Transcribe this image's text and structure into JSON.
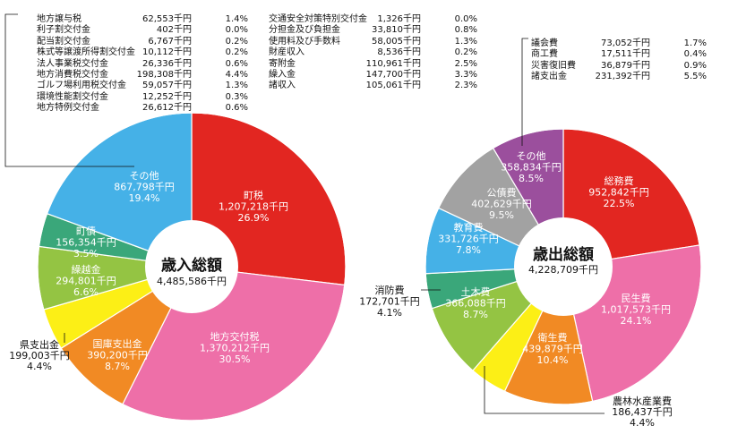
{
  "chart_data": [
    {
      "type": "pie",
      "title": "歳入総額",
      "total": "4,485,586千円",
      "slices": [
        {
          "name": "町税",
          "value": "1,207,218千円",
          "pct": "26.9%",
          "share": 26.9,
          "color": "#e22621"
        },
        {
          "name": "地方交付税",
          "value": "1,370,212千円",
          "pct": "30.5%",
          "share": 30.5,
          "color": "#ee6fa8"
        },
        {
          "name": "国庫支出金",
          "value": "390,200千円",
          "pct": "8.7%",
          "share": 8.7,
          "color": "#f18a24"
        },
        {
          "name": "県支出金",
          "value": "199,003千円",
          "pct": "4.4%",
          "share": 4.4,
          "color": "#fcef16"
        },
        {
          "name": "繰越金",
          "value": "294,801千円",
          "pct": "6.6%",
          "share": 6.6,
          "color": "#94c443"
        },
        {
          "name": "町債",
          "value": "156,354千円",
          "pct": "3.5%",
          "share": 3.5,
          "color": "#3aa77a"
        },
        {
          "name": "その他",
          "value": "867,798千円",
          "pct": "19.4%",
          "share": 19.4,
          "color": "#45b1e7"
        }
      ],
      "other_breakdown": [
        {
          "name": "地方譲与税",
          "value": "62,553千円",
          "pct": "1.4%"
        },
        {
          "name": "利子割交付金",
          "value": "402千円",
          "pct": "0.0%"
        },
        {
          "name": "配当割交付金",
          "value": "6,767千円",
          "pct": "0.2%"
        },
        {
          "name": "株式等譲渡所得割交付金",
          "value": "10,112千円",
          "pct": "0.2%"
        },
        {
          "name": "法人事業税交付金",
          "value": "26,336千円",
          "pct": "0.6%"
        },
        {
          "name": "地方消費税交付金",
          "value": "198,308千円",
          "pct": "4.4%"
        },
        {
          "name": "ゴルフ場利用税交付金",
          "value": "59,057千円",
          "pct": "1.3%"
        },
        {
          "name": "環境性能割交付金",
          "value": "12,252千円",
          "pct": "0.3%"
        },
        {
          "name": "地方特例交付金",
          "value": "26,612千円",
          "pct": "0.6%"
        },
        {
          "name": "交通安全対策特別交付金",
          "value": "1,326千円",
          "pct": "0.0%"
        },
        {
          "name": "分担金及び負担金",
          "value": "33,810千円",
          "pct": "0.8%"
        },
        {
          "name": "使用料及び手数料",
          "value": "58,005千円",
          "pct": "1.3%"
        },
        {
          "name": "財産収入",
          "value": "8,536千円",
          "pct": "0.2%"
        },
        {
          "name": "寄附金",
          "value": "110,961千円",
          "pct": "2.5%"
        },
        {
          "name": "繰入金",
          "value": "147,700千円",
          "pct": "3.3%"
        },
        {
          "name": "諸収入",
          "value": "105,061千円",
          "pct": "2.3%"
        }
      ]
    },
    {
      "type": "pie",
      "title": "歳出総額",
      "total": "4,228,709千円",
      "slices": [
        {
          "name": "総務費",
          "value": "952,842千円",
          "pct": "22.5%",
          "share": 22.5,
          "color": "#e22621"
        },
        {
          "name": "民生費",
          "value": "1,017,573千円",
          "pct": "24.1%",
          "share": 24.1,
          "color": "#ee6fa8"
        },
        {
          "name": "衛生費",
          "value": "439,879千円",
          "pct": "10.4%",
          "share": 10.4,
          "color": "#f18a24"
        },
        {
          "name": "農林水産業費",
          "value": "186,437千円",
          "pct": "4.4%",
          "share": 4.4,
          "color": "#fcef16"
        },
        {
          "name": "土木費",
          "value": "366,088千円",
          "pct": "8.7%",
          "share": 8.7,
          "color": "#94c443"
        },
        {
          "name": "消防費",
          "value": "172,701千円",
          "pct": "4.1%",
          "share": 4.1,
          "color": "#3aa77a"
        },
        {
          "name": "教育費",
          "value": "331,726千円",
          "pct": "7.8%",
          "share": 7.8,
          "color": "#45b1e7"
        },
        {
          "name": "公債費",
          "value": "402,629千円",
          "pct": "9.5%",
          "share": 9.5,
          "color": "#a2a2a2"
        },
        {
          "name": "その他",
          "value": "358,834千円",
          "pct": "8.5%",
          "share": 8.5,
          "color": "#9b4f9d"
        }
      ],
      "other_breakdown": [
        {
          "name": "議会費",
          "value": "73,052千円",
          "pct": "1.7%"
        },
        {
          "name": "商工費",
          "value": "17,511千円",
          "pct": "0.4%"
        },
        {
          "name": "災害復旧費",
          "value": "36,879千円",
          "pct": "0.9%"
        },
        {
          "name": "諸支出金",
          "value": "231,392千円",
          "pct": "5.5%"
        }
      ]
    }
  ]
}
